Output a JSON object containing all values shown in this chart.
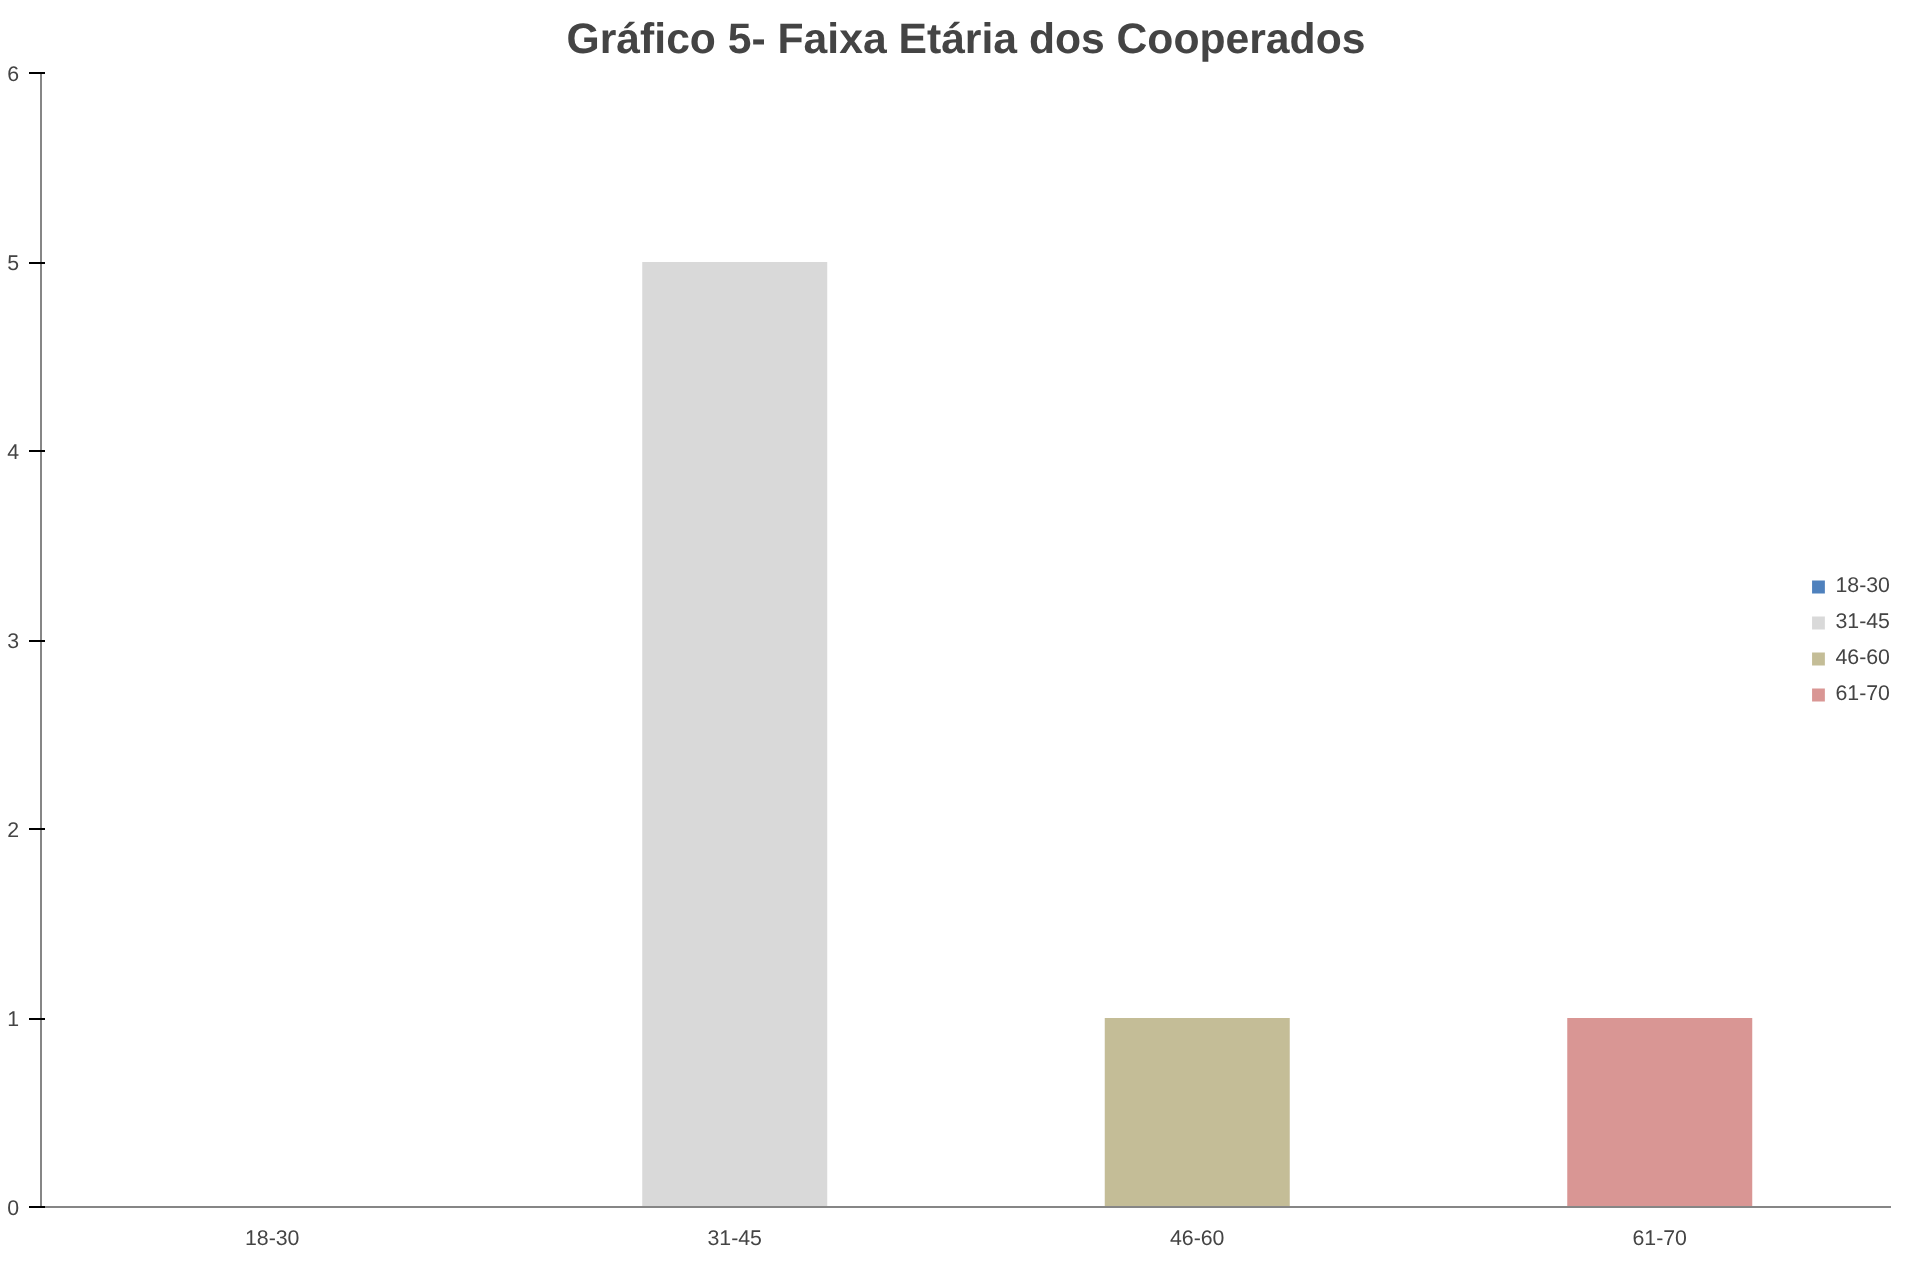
{
  "chart_data": {
    "type": "bar",
    "title": "Gráfico 5- Faixa Etária dos Cooperados",
    "categories": [
      "18-30",
      "31-45",
      "46-60",
      "61-70"
    ],
    "stacked": true,
    "series": [
      {
        "name": "18-30",
        "color": "#4f81bd",
        "values": [
          0,
          null,
          null,
          null
        ]
      },
      {
        "name": "31-45",
        "color": "#d9d9d9",
        "values": [
          null,
          5,
          null,
          null
        ]
      },
      {
        "name": "46-60",
        "color": "#c4bd97",
        "values": [
          null,
          null,
          1,
          null
        ]
      },
      {
        "name": "61-70",
        "color": "#d99694",
        "values": [
          null,
          null,
          null,
          1
        ]
      }
    ],
    "ylim": [
      0,
      6
    ],
    "yticks": [
      0,
      1,
      2,
      3,
      4,
      5,
      6
    ],
    "grid": false,
    "legend": "right"
  }
}
